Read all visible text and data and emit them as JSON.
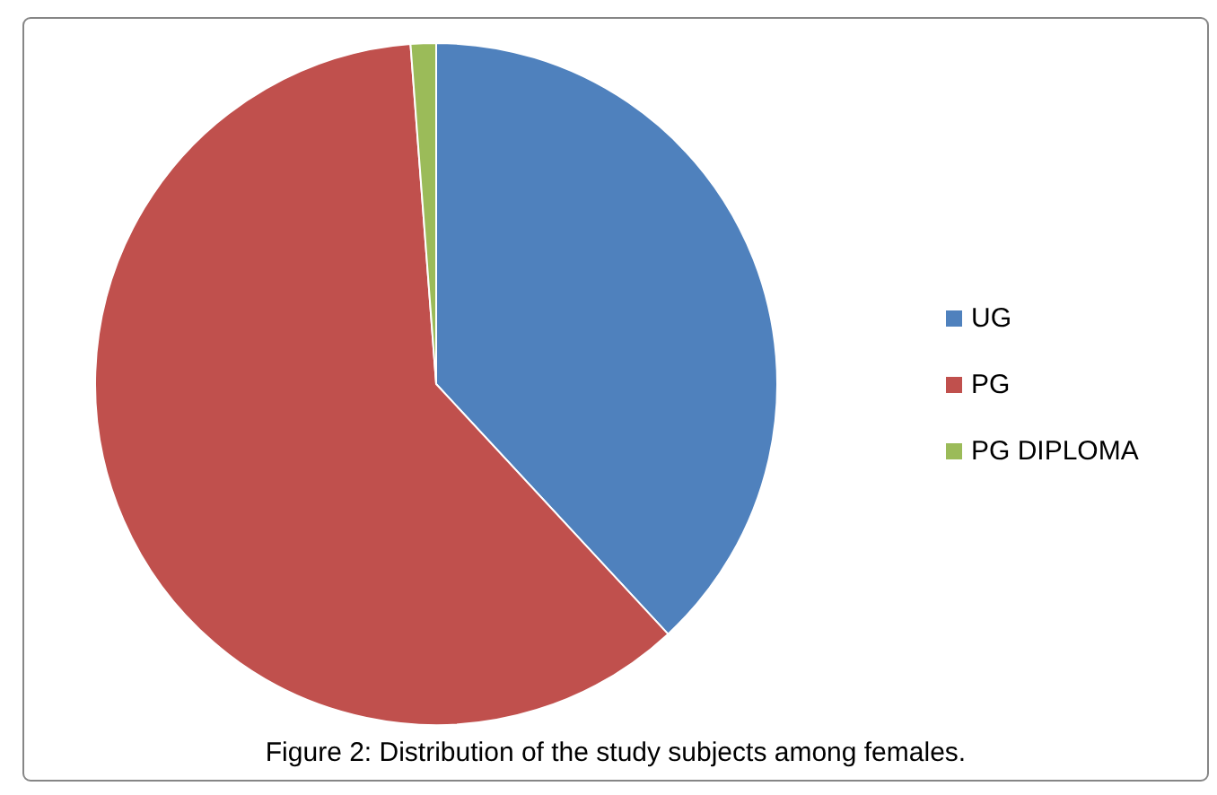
{
  "chart_data": {
    "type": "pie",
    "title": "Figure 2: Distribution of the study subjects among females.",
    "categories": [
      "UG",
      "PG",
      "PG DIPLOMA"
    ],
    "values": [
      38.1,
      60.7,
      1.2
    ],
    "colors": [
      "#4f81bd",
      "#c0504d",
      "#9bbb59"
    ],
    "legend": "right"
  }
}
